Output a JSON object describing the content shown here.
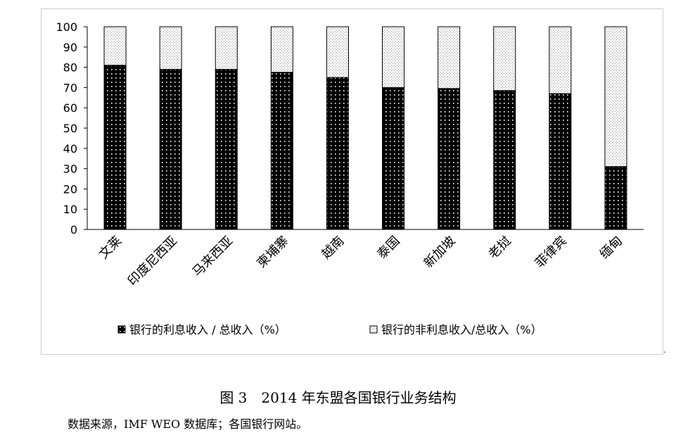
{
  "chart_data": {
    "type": "bar",
    "stacked": true,
    "categories": [
      "文莱",
      "印度尼西亚",
      "马来西亚",
      "柬埔寨",
      "越南",
      "泰国",
      "新加坡",
      "老挝",
      "菲律宾",
      "缅甸"
    ],
    "series": [
      {
        "name": "银行的利息收入 / 总收入（%）",
        "values": [
          81,
          79,
          79,
          77.5,
          75,
          70,
          69.5,
          68.5,
          67,
          31
        ]
      },
      {
        "name": "银行的非利息收入/总收入（%）",
        "values": [
          19,
          21,
          21,
          22.5,
          25,
          30,
          30.5,
          31.5,
          33,
          69
        ]
      }
    ],
    "yticks": [
      "0",
      "10",
      "20",
      "30",
      "40",
      "50",
      "60",
      "70",
      "80",
      "90",
      "100"
    ],
    "ylim": [
      0,
      100
    ],
    "grid": false,
    "legend_position": "bottom",
    "colors": {
      "interest": "#000000",
      "noninterest": "#ffffff"
    }
  },
  "caption": "图 3　2014 年东盟各国银行业务结构",
  "source": "数据来源，IMF WEO 数据库；各国银行网站。",
  "end_mark": "."
}
